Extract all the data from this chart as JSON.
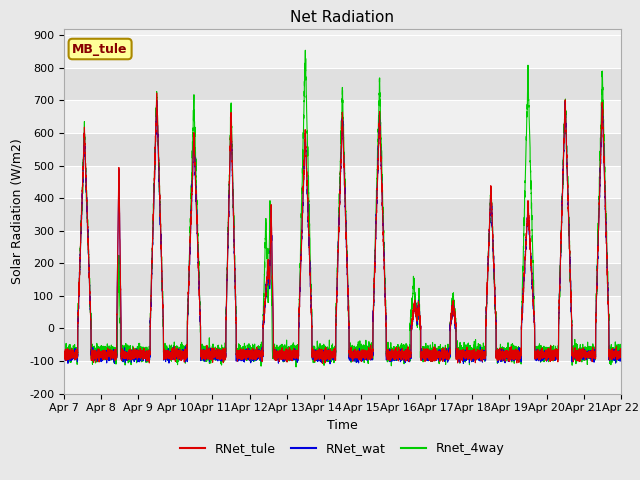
{
  "title": "Net Radiation",
  "ylabel": "Solar Radiation (W/m2)",
  "xlabel": "Time",
  "ylim": [
    -200,
    920
  ],
  "yticks": [
    -200,
    -100,
    0,
    100,
    200,
    300,
    400,
    500,
    600,
    700,
    800,
    900
  ],
  "x_tick_labels": [
    "Apr 7",
    "Apr 8",
    "Apr 9",
    "Apr 10",
    "Apr 11",
    "Apr 12",
    "Apr 13",
    "Apr 14",
    "Apr 15",
    "Apr 16",
    "Apr 17",
    "Apr 18",
    "Apr 19",
    "Apr 20",
    "Apr 21",
    "Apr 22"
  ],
  "bg_outer": "#e8e8e8",
  "bg_plot_light": "#f0f0f0",
  "bg_plot_dark": "#e0e0e0",
  "legend_bg": "#ffffff",
  "legend_labels": [
    "RNet_tule",
    "RNet_wat",
    "Rnet_4way"
  ],
  "legend_colors": [
    "#dd0000",
    "#0000dd",
    "#00cc00"
  ],
  "annotation_text": "MB_tule",
  "annotation_bg": "#ffff99",
  "annotation_border": "#aa8800",
  "annotation_text_color": "#880000",
  "grid_color": "#ffffff",
  "line_colors": [
    "#dd0000",
    "#0000dd",
    "#00cc00"
  ],
  "line_width": 0.8,
  "title_fontsize": 11,
  "tick_fontsize": 8,
  "label_fontsize": 9,
  "legend_fontsize": 9
}
